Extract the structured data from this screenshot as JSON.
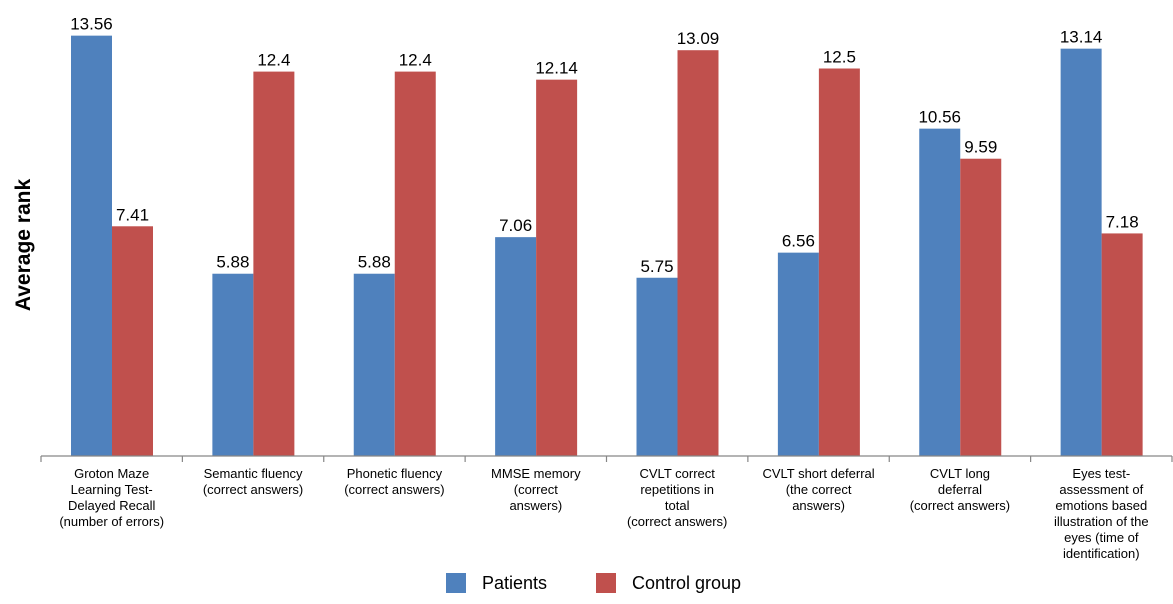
{
  "chart_data": {
    "type": "bar",
    "ylabel": "Average rank",
    "xlabel": "",
    "ylim": [
      0,
      14
    ],
    "grid": false,
    "legend_position": "bottom",
    "categories": [
      [
        "Groton Maze",
        "Learning Test-",
        "Delayed Recall",
        "(number of errors)"
      ],
      [
        "Semantic fluency",
        "(correct answers)"
      ],
      [
        "Phonetic fluency",
        "(correct answers)"
      ],
      [
        "MMSE memory",
        "(correct",
        "answers)"
      ],
      [
        "CVLT correct",
        "repetitions in",
        "total",
        "(correct answers)"
      ],
      [
        "CVLT short deferral",
        "(the correct",
        "answers)"
      ],
      [
        "CVLT long",
        "deferral",
        "(correct answers)"
      ],
      [
        "Eyes test-",
        "assessment of",
        "emotions based",
        "illustration of the",
        "eyes (time of",
        "identification)"
      ]
    ],
    "series": [
      {
        "name": "Patients",
        "color": "#4f81bd",
        "values": [
          13.56,
          5.88,
          5.88,
          7.06,
          5.75,
          6.56,
          10.56,
          13.14
        ]
      },
      {
        "name": "Control group",
        "color": "#c0504d",
        "values": [
          7.41,
          12.4,
          12.4,
          12.14,
          13.09,
          12.5,
          9.59,
          7.18
        ]
      }
    ]
  }
}
